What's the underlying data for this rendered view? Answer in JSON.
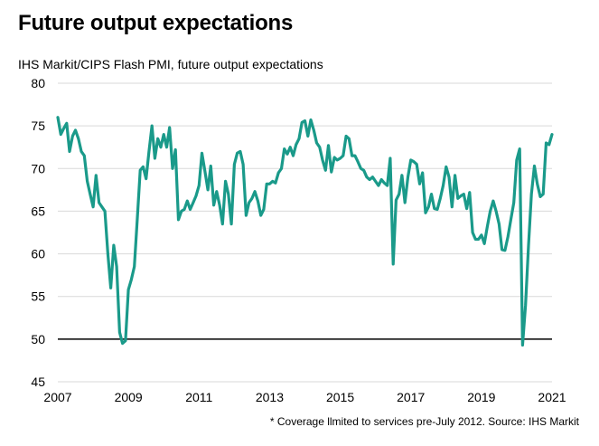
{
  "title": "Future output expectations",
  "subtitle": "IHS Markit/CIPS Flash PMI, future output expectations",
  "footnote": "* Coverage llmited to services pre-July 2012. Source: IHS Markit",
  "colors": {
    "line": "#1a9a8a",
    "grid": "#d9d9d9",
    "reference": "#000000"
  },
  "chart_data": {
    "type": "line",
    "title": "Future output expectations",
    "subtitle": "IHS Markit/CIPS Flash PMI, future output expectations",
    "xlabel": "",
    "ylabel": "",
    "xlim": [
      2007,
      2021
    ],
    "ylim": [
      45,
      80
    ],
    "x_ticks": [
      "2007",
      "2009",
      "2011",
      "2013",
      "2015",
      "2017",
      "2019",
      "2021"
    ],
    "y_ticks": [
      "45",
      "50",
      "55",
      "60",
      "65",
      "70",
      "75",
      "80"
    ],
    "reference_line": 50,
    "grid": "horizontal",
    "series": [
      {
        "name": "",
        "x_start": "2007-01",
        "frequency": "monthly",
        "values": [
          76.0,
          74.0,
          74.7,
          75.3,
          72.0,
          73.8,
          74.5,
          73.5,
          72.0,
          71.5,
          68.5,
          67.0,
          65.5,
          69.2,
          66.0,
          65.5,
          65.0,
          60.0,
          56.0,
          61.0,
          58.5,
          50.8,
          49.5,
          49.8,
          55.8,
          57.0,
          58.5,
          64.0,
          69.8,
          70.2,
          68.8,
          72.0,
          75.0,
          71.2,
          73.5,
          72.5,
          74.0,
          72.5,
          74.8,
          70.0,
          72.2,
          64.0,
          65.0,
          65.2,
          66.2,
          65.2,
          66.0,
          66.8,
          68.0,
          71.8,
          69.7,
          67.5,
          70.3,
          65.7,
          67.3,
          65.7,
          63.5,
          68.5,
          67.0,
          63.5,
          70.5,
          71.8,
          72.0,
          70.5,
          64.5,
          66.0,
          66.5,
          67.3,
          66.2,
          64.5,
          65.2,
          68.2,
          68.2,
          68.5,
          68.3,
          69.5,
          70.0,
          72.3,
          71.7,
          72.5,
          71.5,
          72.8,
          73.5,
          75.4,
          75.6,
          73.8,
          75.7,
          74.5,
          73.0,
          72.5,
          71.0,
          69.8,
          72.7,
          69.6,
          71.3,
          71.0,
          71.2,
          71.5,
          73.8,
          73.5,
          71.5,
          71.5,
          70.8,
          70.0,
          69.8,
          69.0,
          68.7,
          69.0,
          68.5,
          68.0,
          68.7,
          68.3,
          68.0,
          71.2,
          58.8,
          66.3,
          67.0,
          69.2,
          66.0,
          69.0,
          71.0,
          70.8,
          70.5,
          68.2,
          69.5,
          64.8,
          65.5,
          67.0,
          65.3,
          65.2,
          66.5,
          68.0,
          70.2,
          69.0,
          65.5,
          69.2,
          66.5,
          66.8,
          67.0,
          65.3,
          67.2,
          62.5,
          61.7,
          61.7,
          62.2,
          61.2,
          63.2,
          65.0,
          66.2,
          65.0,
          63.5,
          60.5,
          60.4,
          62.0,
          64.0,
          66.0,
          71.0,
          72.3,
          49.3,
          54.0,
          61.0,
          67.0,
          70.3,
          68.2,
          66.7,
          67.0,
          73.0,
          72.8,
          74.0
        ]
      }
    ]
  }
}
